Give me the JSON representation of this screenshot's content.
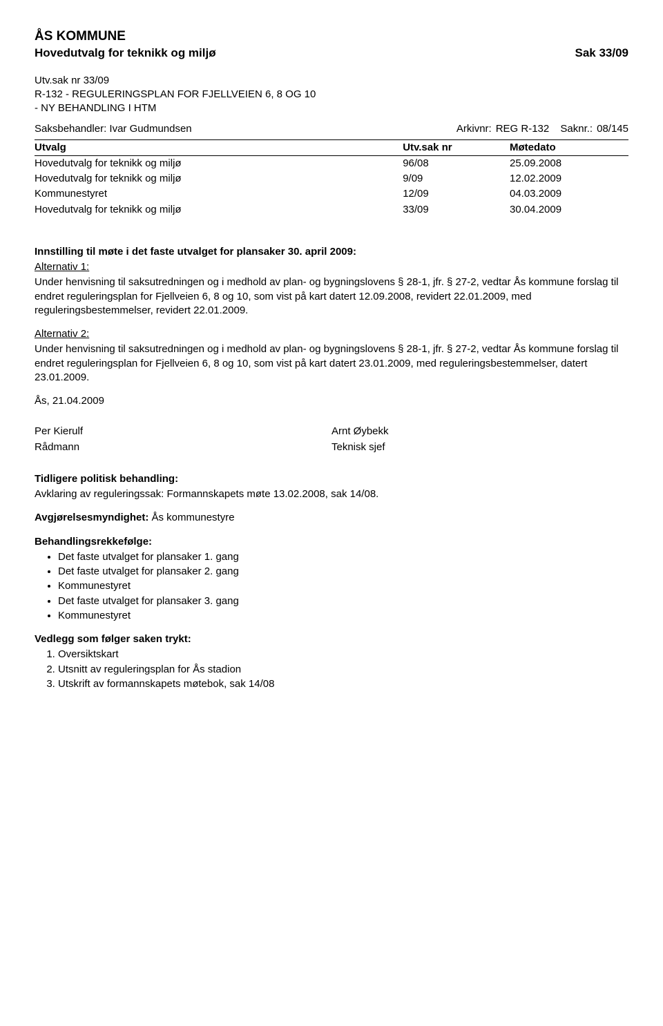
{
  "header": {
    "org": "ÅS KOMMUNE",
    "committee": "Hovedutvalg for teknikk og miljø",
    "sak": "Sak 33/09"
  },
  "title": {
    "line1": "Utv.sak nr 33/09",
    "line2": "R-132 - REGULERINGSPLAN FOR FJELLVEIEN 6, 8 OG 10",
    "line3": "- NY BEHANDLING I HTM"
  },
  "meta": {
    "handler_label": "Saksbehandler:",
    "handler_name": "Ivar Gudmundsen",
    "arkiv_label": "Arkivnr:",
    "arkiv_value": "REG R-132",
    "saknr_label": "Saknr.:",
    "saknr_value": "08/145"
  },
  "utvalg_table": {
    "headers": [
      "Utvalg",
      "Utv.sak nr",
      "Møtedato"
    ],
    "rows": [
      [
        "Hovedutvalg for teknikk og miljø",
        "96/08",
        "25.09.2008"
      ],
      [
        "Hovedutvalg for teknikk og miljø",
        "9/09",
        "12.02.2009"
      ],
      [
        "Kommunestyret",
        "12/09",
        "04.03.2009"
      ],
      [
        "Hovedutvalg for teknikk og miljø",
        "33/09",
        "30.04.2009"
      ]
    ]
  },
  "innstilling": {
    "heading": "Innstilling til møte i det faste utvalget for plansaker 30. april 2009:",
    "alt1_label": "Alternativ 1:",
    "alt1_text": "Under henvisning til saksutredningen og i medhold av plan- og bygningslovens § 28-1, jfr. § 27-2, vedtar Ås kommune forslag til endret reguleringsplan for Fjellveien 6, 8 og 10, som vist på kart datert 12.09.2008, revidert 22.01.2009, med reguleringsbestemmelser, revidert 22.01.2009.",
    "alt2_label": "Alternativ 2:",
    "alt2_text": "Under henvisning til saksutredningen og i medhold av plan- og bygningslovens § 28-1, jfr. § 27-2, vedtar Ås kommune forslag til endret reguleringsplan for Fjellveien 6, 8 og 10, som vist på kart datert 23.01.2009, med reguleringsbestemmelser, datert 23.01.2009."
  },
  "place_date": "Ås, 21.04.2009",
  "signatures": {
    "left_name": "Per Kierulf",
    "left_title": "Rådmann",
    "right_name": "Arnt Øybekk",
    "right_title": "Teknisk sjef"
  },
  "tidligere": {
    "heading": "Tidligere politisk behandling:",
    "text": "Avklaring av reguleringssak: Formannskapets møte 13.02.2008, sak 14/08."
  },
  "avgjorelse": {
    "label": "Avgjørelsesmyndighet:",
    "text": "Ås kommunestyre"
  },
  "behandling": {
    "heading": "Behandlingsrekkefølge:",
    "items": [
      "Det faste utvalget for plansaker 1. gang",
      "Det faste utvalget for plansaker 2. gang",
      "Kommunestyret",
      "Det faste utvalget for plansaker 3. gang",
      "Kommunestyret"
    ]
  },
  "vedlegg": {
    "heading": "Vedlegg som følger saken trykt:",
    "items": [
      "Oversiktskart",
      "Utsnitt av reguleringsplan for Ås stadion",
      "Utskrift av formannskapets møtebok, sak 14/08"
    ]
  }
}
